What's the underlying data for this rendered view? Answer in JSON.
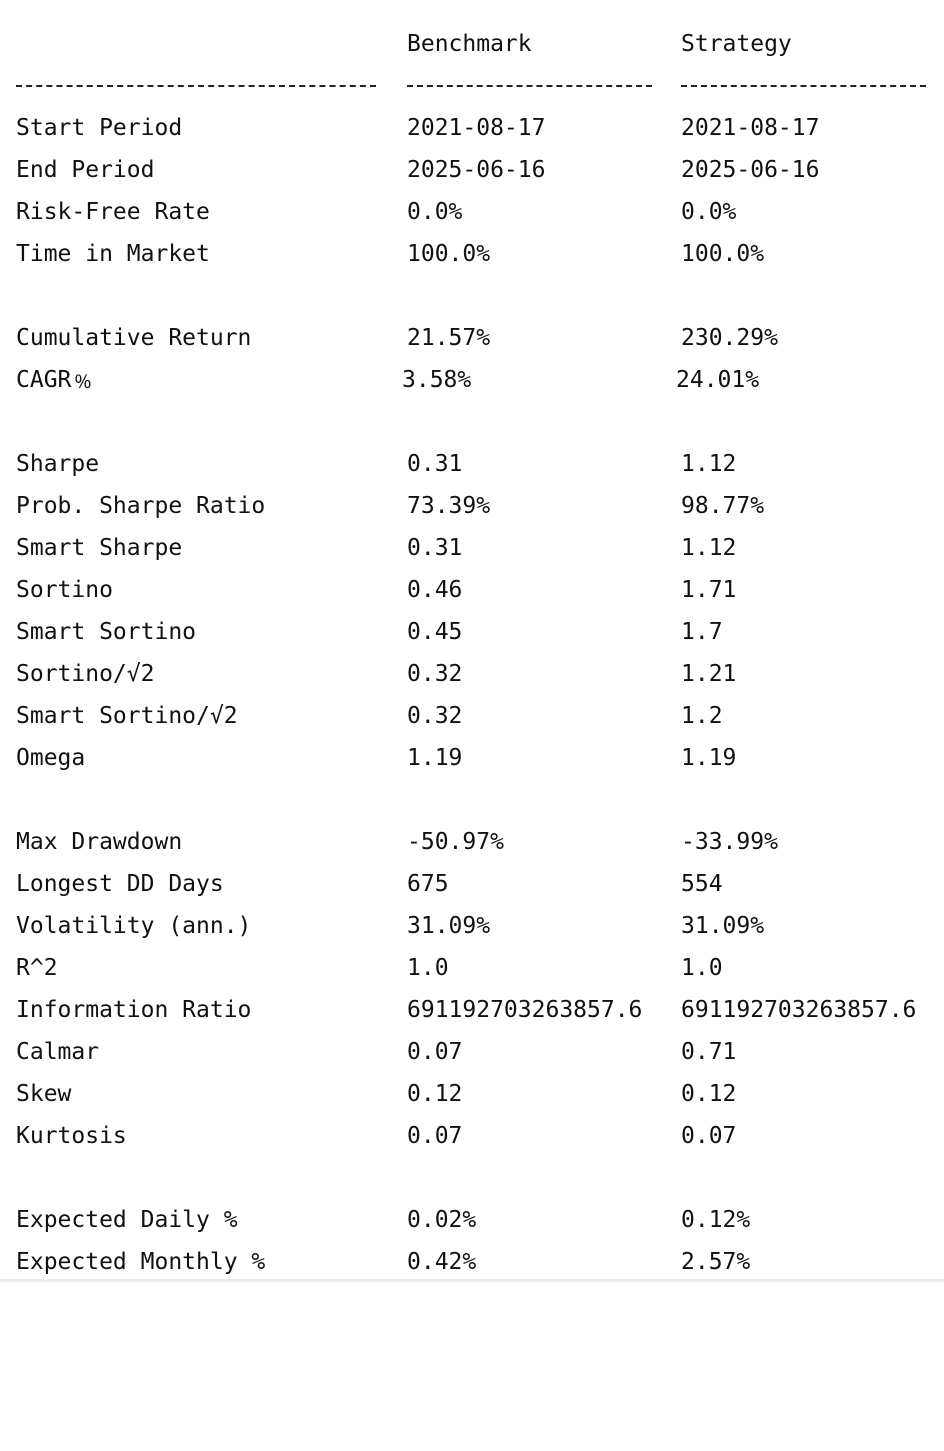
{
  "header": {
    "benchmark": "Benchmark",
    "strategy": "Strategy"
  },
  "rows": [
    {
      "metric": "Start Period",
      "benchmark": "2021-08-17",
      "strategy": "2021-08-17"
    },
    {
      "metric": "End Period",
      "benchmark": "2025-06-16",
      "strategy": "2025-06-16"
    },
    {
      "metric": "Risk-Free Rate",
      "benchmark": "0.0%",
      "strategy": "0.0%"
    },
    {
      "metric": "Time in Market",
      "benchmark": "100.0%",
      "strategy": "100.0%"
    },
    {
      "metric": "Cumulative Return",
      "benchmark": "21.57%",
      "strategy": "230.29%"
    },
    {
      "metric": "CAGR﹪",
      "benchmark": "3.58%",
      "strategy": "24.01%"
    },
    {
      "metric": "Sharpe",
      "benchmark": "0.31",
      "strategy": "1.12"
    },
    {
      "metric": "Prob. Sharpe Ratio",
      "benchmark": "73.39%",
      "strategy": "98.77%"
    },
    {
      "metric": "Smart Sharpe",
      "benchmark": "0.31",
      "strategy": "1.12"
    },
    {
      "metric": "Sortino",
      "benchmark": "0.46",
      "strategy": "1.71"
    },
    {
      "metric": "Smart Sortino",
      "benchmark": "0.45",
      "strategy": "1.7"
    },
    {
      "metric": "Sortino/√2",
      "benchmark": "0.32",
      "strategy": "1.21"
    },
    {
      "metric": "Smart Sortino/√2",
      "benchmark": "0.32",
      "strategy": "1.2"
    },
    {
      "metric": "Omega",
      "benchmark": "1.19",
      "strategy": "1.19"
    },
    {
      "metric": "Max Drawdown",
      "benchmark": "-50.97%",
      "strategy": "-33.99%"
    },
    {
      "metric": "Longest DD Days",
      "benchmark": "675",
      "strategy": "554"
    },
    {
      "metric": "Volatility (ann.)",
      "benchmark": "31.09%",
      "strategy": "31.09%"
    },
    {
      "metric": "R^2",
      "benchmark": "1.0",
      "strategy": "1.0"
    },
    {
      "metric": "Information Ratio",
      "benchmark": "691192703263857.6",
      "strategy": "691192703263857.6"
    },
    {
      "metric": "Calmar",
      "benchmark": "0.07",
      "strategy": "0.71"
    },
    {
      "metric": "Skew",
      "benchmark": "0.12",
      "strategy": "0.12"
    },
    {
      "metric": "Kurtosis",
      "benchmark": "0.07",
      "strategy": "0.07"
    },
    {
      "metric": "Expected Daily %",
      "benchmark": "0.02%",
      "strategy": "0.12%"
    },
    {
      "metric": "Expected Monthly %",
      "benchmark": "0.42%",
      "strategy": "2.57%"
    }
  ]
}
